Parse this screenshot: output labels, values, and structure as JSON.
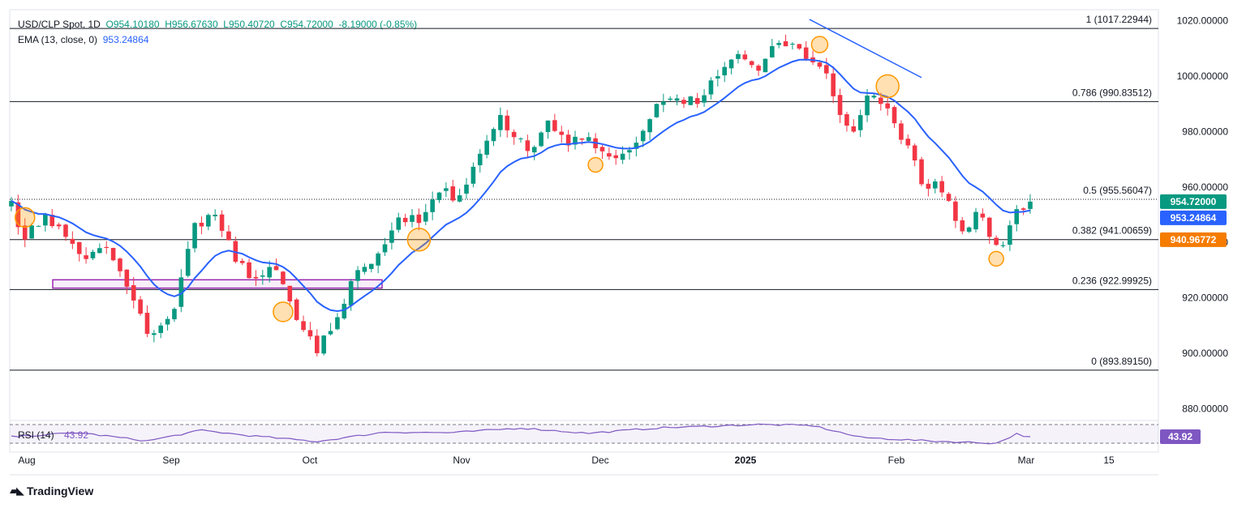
{
  "header": {
    "symbol": "USD/CLP Spot, 1D",
    "open": "O954.10180",
    "high": "H956.67630",
    "low": "L950.40720",
    "close": "C954.72000",
    "change": "-8.19000 (-0.85%)",
    "ema_label": "EMA (13, close, 0)",
    "ema_value": "953.24864",
    "rsi_label": "RSI (14)",
    "rsi_value": "43.92"
  },
  "brand": {
    "name": "TradingView"
  },
  "colors": {
    "up": "#089981",
    "down": "#f23645",
    "ema": "#2962ff",
    "rsi": "#7e57c2",
    "fib": "#131722",
    "marker": "#ff9800",
    "zone": "#9c27b0"
  },
  "chart_data": {
    "type": "candlestick",
    "title": "USD/CLP Spot, 1D",
    "y_axis": {
      "range": [
        876,
        1024
      ],
      "tick_labels": [
        "1020.00000",
        "1000.00000",
        "980.00000",
        "960.00000",
        "940.00000",
        "920.00000",
        "900.00000",
        "880.00000"
      ],
      "tick_values": [
        1020,
        1000,
        980,
        960,
        940,
        920,
        900,
        880
      ]
    },
    "x_axis": {
      "labels": [
        "Aug",
        "Sep",
        "Oct",
        "Nov",
        "Dec",
        "2025",
        "Feb",
        "Mar",
        "15"
      ]
    },
    "fib_levels": [
      {
        "label": "1 (1017.22944)",
        "value": 1017.22944
      },
      {
        "label": "0.786 (990.83512)",
        "value": 990.83512
      },
      {
        "label": "0.5 (955.56047)",
        "value": 955.56047
      },
      {
        "label": "0.382 (941.00659)",
        "value": 941.00659
      },
      {
        "label": "0.236 (922.99925)",
        "value": 922.99925
      },
      {
        "label": "0 (893.89150)",
        "value": 893.8915
      }
    ],
    "price_badges": [
      {
        "label": "954.72000",
        "value": 954.72,
        "color": "#089981"
      },
      {
        "label": "953.24864",
        "value": 953.24864,
        "color": "#2962ff"
      },
      {
        "label": "940.96772",
        "value": 940.96772,
        "color": "#f57c00"
      }
    ],
    "close_anchors": [
      [
        0,
        955
      ],
      [
        2,
        941
      ],
      [
        5,
        950
      ],
      [
        8,
        942
      ],
      [
        11,
        934
      ],
      [
        14,
        938
      ],
      [
        17,
        924
      ],
      [
        20,
        907
      ],
      [
        22,
        910
      ],
      [
        24,
        916
      ],
      [
        27,
        947
      ],
      [
        30,
        950
      ],
      [
        33,
        933
      ],
      [
        36,
        927
      ],
      [
        39,
        930
      ],
      [
        42,
        912
      ],
      [
        45,
        900
      ],
      [
        48,
        913
      ],
      [
        51,
        930
      ],
      [
        54,
        936
      ],
      [
        57,
        949
      ],
      [
        60,
        947
      ],
      [
        63,
        958
      ],
      [
        66,
        957
      ],
      [
        69,
        972
      ],
      [
        72,
        986
      ],
      [
        74,
        978
      ],
      [
        76,
        973
      ],
      [
        79,
        984
      ],
      [
        82,
        975
      ],
      [
        85,
        978
      ],
      [
        88,
        971
      ],
      [
        90,
        972
      ],
      [
        92,
        976
      ],
      [
        95,
        990
      ],
      [
        98,
        992
      ],
      [
        101,
        990
      ],
      [
        104,
        1000
      ],
      [
        107,
        1008
      ],
      [
        110,
        1002
      ],
      [
        113,
        1012
      ],
      [
        116,
        1010
      ],
      [
        118,
        1005
      ],
      [
        120,
        1001
      ],
      [
        122,
        986
      ],
      [
        124,
        980
      ],
      [
        126,
        993
      ],
      [
        128,
        990
      ],
      [
        130,
        983
      ],
      [
        132,
        975
      ],
      [
        134,
        961
      ],
      [
        136,
        962
      ],
      [
        138,
        955
      ],
      [
        140,
        944
      ],
      [
        142,
        951
      ],
      [
        144,
        942
      ],
      [
        146,
        939
      ],
      [
        148,
        952
      ],
      [
        150,
        955
      ]
    ],
    "ema_period": 13,
    "last_close": 954.72,
    "rsi": {
      "period": 14,
      "value": 43.92,
      "anchors": [
        [
          0,
          45
        ],
        [
          10,
          52
        ],
        [
          20,
          38
        ],
        [
          28,
          56
        ],
        [
          35,
          47
        ],
        [
          45,
          37
        ],
        [
          55,
          53
        ],
        [
          65,
          52
        ],
        [
          75,
          60
        ],
        [
          85,
          51
        ],
        [
          95,
          60
        ],
        [
          110,
          66
        ],
        [
          118,
          64
        ],
        [
          125,
          44
        ],
        [
          135,
          38
        ],
        [
          145,
          34
        ],
        [
          148,
          50
        ],
        [
          150,
          44
        ]
      ]
    },
    "annotations": {
      "support_zone": {
        "y_low": 923.5,
        "y_high": 926.5
      },
      "trendline": {
        "from_value": 1020.5,
        "to_value": 999.5
      }
    }
  }
}
